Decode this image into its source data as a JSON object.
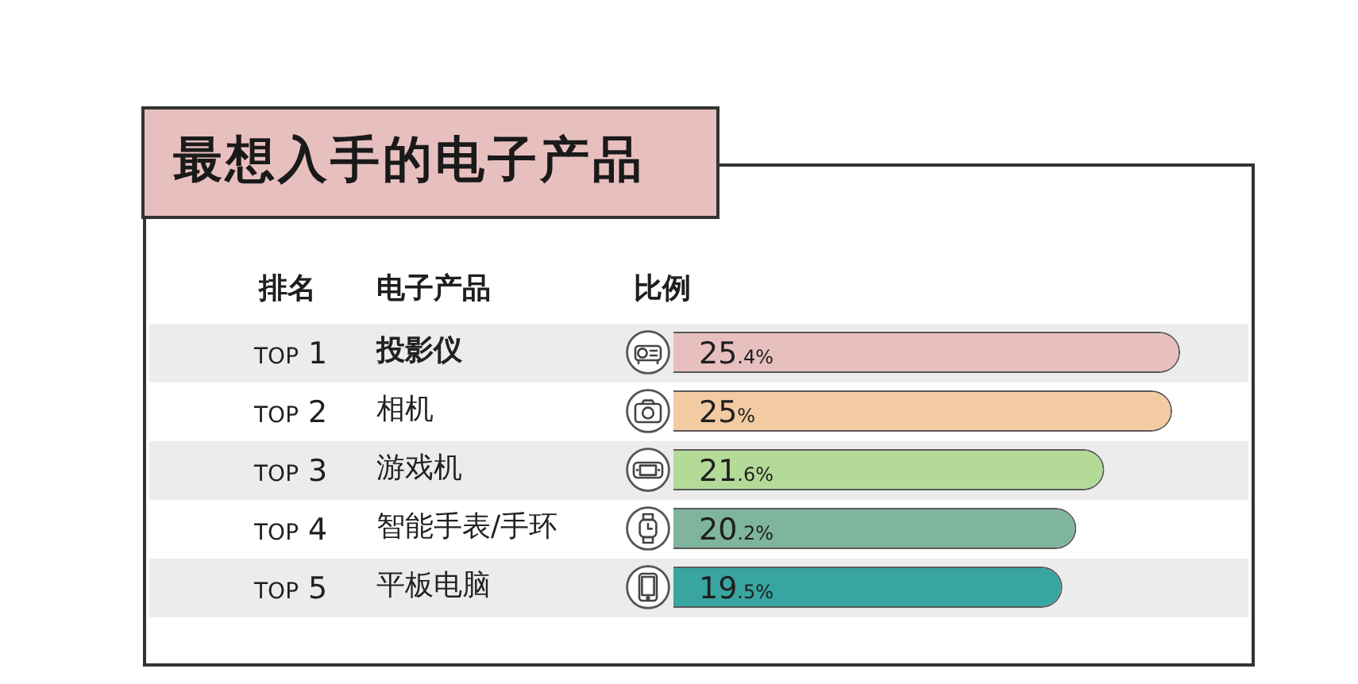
{
  "chart_data": {
    "type": "bar",
    "orientation": "horizontal",
    "title": "最想入手的电子产品",
    "xlabel": "比例",
    "ylabel": "电子产品",
    "categories": [
      "投影仪",
      "相机",
      "游戏机",
      "智能手表/手环",
      "平板电脑"
    ],
    "values": [
      25.4,
      25,
      21.6,
      20.2,
      19.5
    ],
    "colors": [
      "#e8bfbf",
      "#f2cba3",
      "#b4da98",
      "#7fb59c",
      "#38a5a1"
    ],
    "value_labels": [
      "25.4%",
      "25%",
      "21.6%",
      "20.2%",
      "19.5%"
    ],
    "annotations": [
      "排名",
      "TOP 1",
      "TOP 2",
      "TOP 3",
      "TOP 4",
      "TOP 5"
    ],
    "tick_labels": "y"
  }
}
